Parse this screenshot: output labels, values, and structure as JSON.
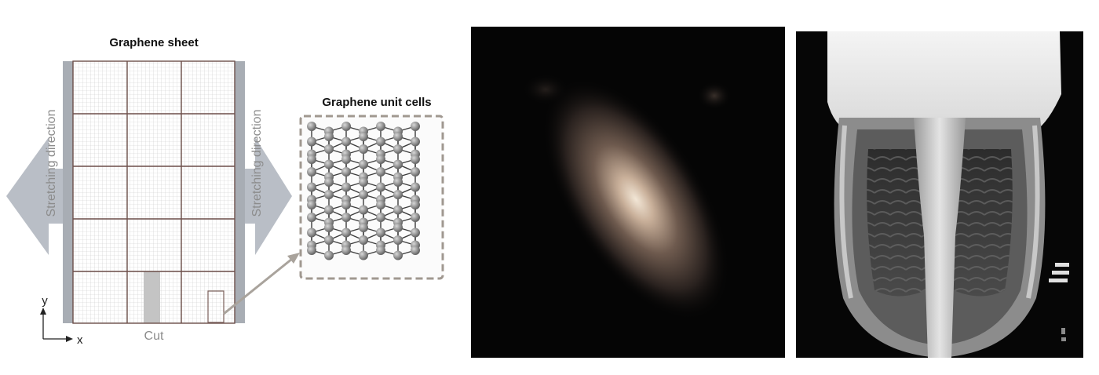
{
  "diagram": {
    "sheet_title": "Graphene sheet",
    "unit_cells_title": "Graphene unit cells",
    "left_label": "Stretching direction",
    "right_label": "Stretching direction",
    "cut_label": "Cut",
    "axis_y": "y",
    "axis_x": "x"
  },
  "colors": {
    "arrow": "#b9bec6",
    "grid_major": "#6d4f4a",
    "grid_minor": "#c9c9c9",
    "atom": "#8f8f8f",
    "frame_dash": "#a09890"
  }
}
